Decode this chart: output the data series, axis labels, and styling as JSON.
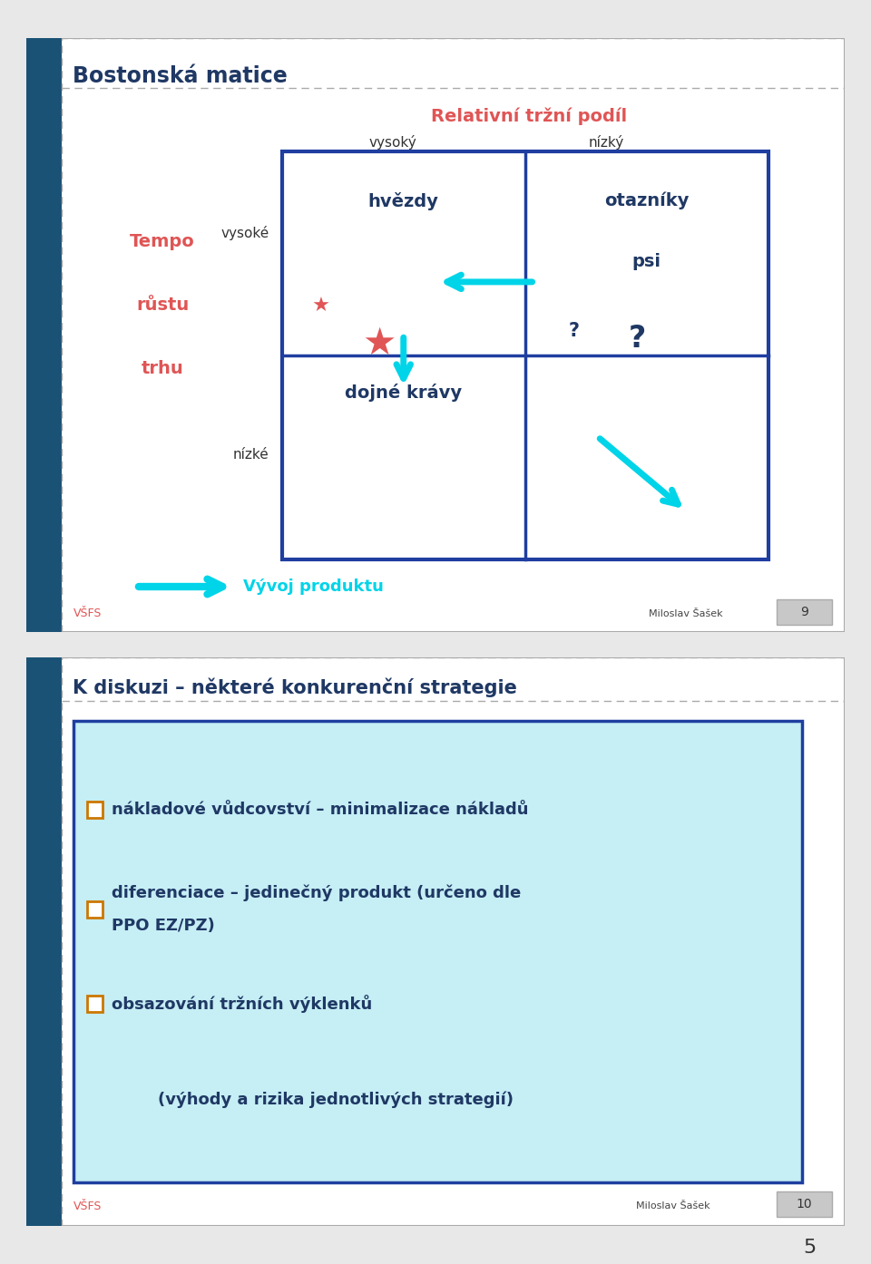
{
  "bg_color": "#e8e8e8",
  "slide_bg": "#ffffff",
  "dark_blue": "#1f3864",
  "medium_blue": "#1f3ea0",
  "side_blue": "#1a5276",
  "cyan": "#00d4e8",
  "red_label": "#e05555",
  "text_dark": "#1f3864",
  "gray_border": "#aaaaaa",
  "slide1": {
    "title": "Bostonská matice",
    "subtitle": "Relativní tržní podíl",
    "col_high": "vysoký",
    "col_low": "nízký",
    "row_high": "vysoké",
    "row_low": "nízké",
    "tempo_lines": [
      "Tempo",
      "růstu",
      "trhu"
    ],
    "cell_tl": "hvězdy",
    "cell_tr": "otazníky",
    "cell_bl": "dojné krávy",
    "cell_br": "psi",
    "bottom_arrow_label": "Vývoj produktu",
    "footer_left": "VŠFS",
    "footer_mid": "Miloslav Šašek",
    "footer_num": "9"
  },
  "slide2": {
    "title": "K diskuzi – některé konkurenční strategie",
    "b1": "nákladové vůdcovství – minimalizace nákladů",
    "b2a": "diferenciace – jedinečný produkt (určeno dle",
    "b2b": "PPO EZ/PZ)",
    "b3": "obsazování tržních výklenků",
    "note": "(výhody a rizika jednotlivých strategií)",
    "footer_left": "VŠFS",
    "footer_mid": "Miloslav Šašek",
    "footer_num": "10"
  },
  "page_num": "5"
}
